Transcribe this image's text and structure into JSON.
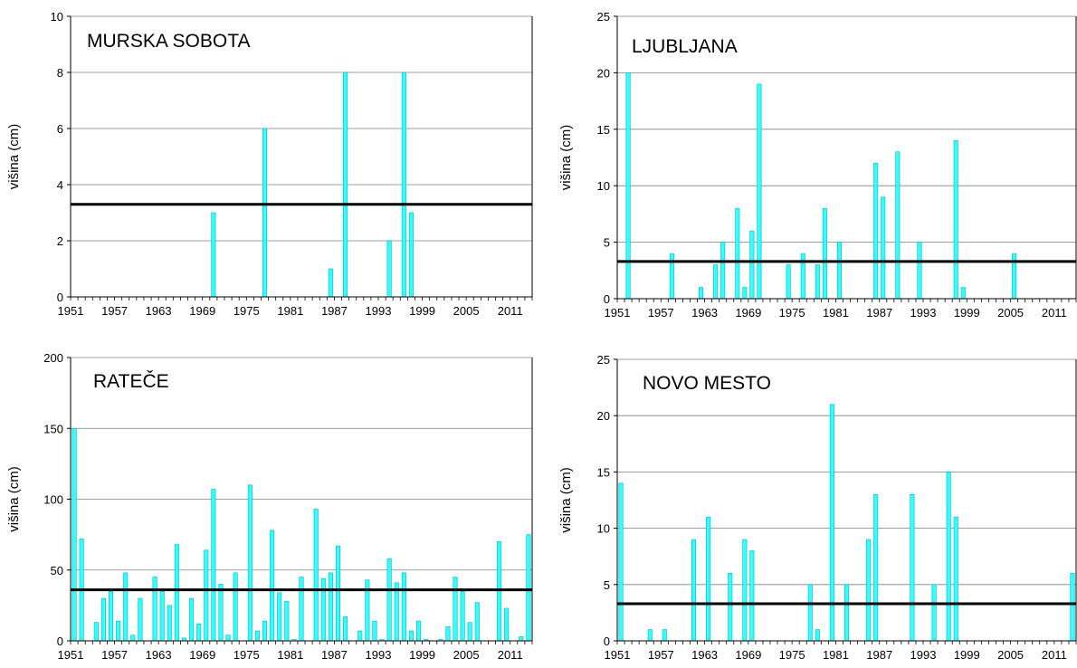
{
  "colors": {
    "bar": "#33FFFF",
    "bar_stroke": "#00B8C8",
    "mean_line": "#000000",
    "grid": "#808080"
  },
  "chart_data": [
    {
      "type": "bar",
      "title": "MURSKA SOBOTA",
      "ylabel": "višina (cm)",
      "ylim": [
        0,
        10
      ],
      "yticks": [
        "0",
        "2",
        "4",
        "6",
        "8",
        "10"
      ],
      "xticks": [
        "1951",
        "1957",
        "1963",
        "1969",
        "1975",
        "1981",
        "1987",
        "1993",
        "1999",
        "2005",
        "2011"
      ],
      "x_range": [
        1951,
        2012
      ],
      "mean": 3.3,
      "grid": true,
      "points": [
        {
          "x": 1970,
          "y": 3
        },
        {
          "x": 1977,
          "y": 6
        },
        {
          "x": 1986,
          "y": 1
        },
        {
          "x": 1988,
          "y": 8
        },
        {
          "x": 1994,
          "y": 2
        },
        {
          "x": 1996,
          "y": 8
        },
        {
          "x": 1997,
          "y": 3
        }
      ]
    },
    {
      "type": "bar",
      "title": "LJUBLJANA",
      "ylabel": "višina (cm)",
      "ylim": [
        0,
        25
      ],
      "yticks": [
        "0",
        "5",
        "10",
        "15",
        "20",
        "25"
      ],
      "xticks": [
        "1951",
        "1957",
        "1963",
        "1969",
        "1975",
        "1981",
        "1987",
        "1993",
        "1999",
        "2005",
        "2011"
      ],
      "x_range": [
        1951,
        2012
      ],
      "mean": 3.3,
      "grid": true,
      "points": [
        {
          "x": 1952,
          "y": 20
        },
        {
          "x": 1958,
          "y": 4
        },
        {
          "x": 1962,
          "y": 1
        },
        {
          "x": 1964,
          "y": 3
        },
        {
          "x": 1965,
          "y": 5
        },
        {
          "x": 1967,
          "y": 8
        },
        {
          "x": 1968,
          "y": 1
        },
        {
          "x": 1969,
          "y": 6
        },
        {
          "x": 1970,
          "y": 19
        },
        {
          "x": 1974,
          "y": 3
        },
        {
          "x": 1976,
          "y": 4
        },
        {
          "x": 1978,
          "y": 3
        },
        {
          "x": 1979,
          "y": 8
        },
        {
          "x": 1981,
          "y": 5
        },
        {
          "x": 1986,
          "y": 12
        },
        {
          "x": 1987,
          "y": 9
        },
        {
          "x": 1989,
          "y": 13
        },
        {
          "x": 1992,
          "y": 5
        },
        {
          "x": 1997,
          "y": 14
        },
        {
          "x": 1998,
          "y": 1
        },
        {
          "x": 2005,
          "y": 4
        }
      ]
    },
    {
      "type": "bar",
      "title": "RATEČE",
      "ylabel": "višina (cm)",
      "ylim": [
        0,
        200
      ],
      "yticks": [
        "0",
        "50",
        "100",
        "150",
        "200"
      ],
      "xticks": [
        "1951",
        "1957",
        "1963",
        "1969",
        "1975",
        "1981",
        "1987",
        "1993",
        "1999",
        "2005",
        "2011"
      ],
      "x_range": [
        1951,
        2012
      ],
      "mean": 36,
      "grid": true,
      "points": [
        {
          "x": 1951,
          "y": 150
        },
        {
          "x": 1952,
          "y": 72
        },
        {
          "x": 1954,
          "y": 13
        },
        {
          "x": 1955,
          "y": 30
        },
        {
          "x": 1956,
          "y": 35
        },
        {
          "x": 1957,
          "y": 14
        },
        {
          "x": 1958,
          "y": 48
        },
        {
          "x": 1959,
          "y": 4
        },
        {
          "x": 1960,
          "y": 30
        },
        {
          "x": 1962,
          "y": 45
        },
        {
          "x": 1963,
          "y": 35
        },
        {
          "x": 1964,
          "y": 25
        },
        {
          "x": 1965,
          "y": 68
        },
        {
          "x": 1966,
          "y": 2
        },
        {
          "x": 1967,
          "y": 30
        },
        {
          "x": 1968,
          "y": 12
        },
        {
          "x": 1969,
          "y": 64
        },
        {
          "x": 1970,
          "y": 107
        },
        {
          "x": 1971,
          "y": 40
        },
        {
          "x": 1972,
          "y": 4
        },
        {
          "x": 1973,
          "y": 48
        },
        {
          "x": 1975,
          "y": 110
        },
        {
          "x": 1976,
          "y": 7
        },
        {
          "x": 1977,
          "y": 14
        },
        {
          "x": 1978,
          "y": 78
        },
        {
          "x": 1979,
          "y": 34
        },
        {
          "x": 1980,
          "y": 28
        },
        {
          "x": 1981,
          "y": 1
        },
        {
          "x": 1982,
          "y": 45
        },
        {
          "x": 1984,
          "y": 93
        },
        {
          "x": 1985,
          "y": 44
        },
        {
          "x": 1986,
          "y": 48
        },
        {
          "x": 1987,
          "y": 67
        },
        {
          "x": 1988,
          "y": 17
        },
        {
          "x": 1990,
          "y": 7
        },
        {
          "x": 1991,
          "y": 43
        },
        {
          "x": 1992,
          "y": 14
        },
        {
          "x": 1993,
          "y": 1
        },
        {
          "x": 1994,
          "y": 58
        },
        {
          "x": 1995,
          "y": 41
        },
        {
          "x": 1996,
          "y": 48
        },
        {
          "x": 1997,
          "y": 7
        },
        {
          "x": 1998,
          "y": 14
        },
        {
          "x": 1999,
          "y": 1
        },
        {
          "x": 2001,
          "y": 1
        },
        {
          "x": 2002,
          "y": 10
        },
        {
          "x": 2003,
          "y": 45
        },
        {
          "x": 2004,
          "y": 35
        },
        {
          "x": 2005,
          "y": 13
        },
        {
          "x": 2006,
          "y": 27
        },
        {
          "x": 2009,
          "y": 70
        },
        {
          "x": 2010,
          "y": 23
        },
        {
          "x": 2012,
          "y": 3
        },
        {
          "x": 2013,
          "y": 75
        }
      ]
    },
    {
      "type": "bar",
      "title": "NOVO MESTO",
      "ylabel": "višina (cm)",
      "ylim": [
        0,
        25
      ],
      "yticks": [
        "0",
        "5",
        "10",
        "15",
        "20",
        "25"
      ],
      "xticks": [
        "1951",
        "1957",
        "1963",
        "1969",
        "1975",
        "1981",
        "1987",
        "1993",
        "1999",
        "2005",
        "2011"
      ],
      "x_range": [
        1951,
        2012
      ],
      "mean": 3.3,
      "grid": true,
      "points": [
        {
          "x": 1951,
          "y": 14
        },
        {
          "x": 1955,
          "y": 1
        },
        {
          "x": 1957,
          "y": 1
        },
        {
          "x": 1961,
          "y": 9
        },
        {
          "x": 1963,
          "y": 11
        },
        {
          "x": 1966,
          "y": 6
        },
        {
          "x": 1968,
          "y": 9
        },
        {
          "x": 1969,
          "y": 8
        },
        {
          "x": 1977,
          "y": 5
        },
        {
          "x": 1978,
          "y": 1
        },
        {
          "x": 1980,
          "y": 21
        },
        {
          "x": 1982,
          "y": 5
        },
        {
          "x": 1985,
          "y": 9
        },
        {
          "x": 1986,
          "y": 13
        },
        {
          "x": 1991,
          "y": 13
        },
        {
          "x": 1994,
          "y": 5
        },
        {
          "x": 1996,
          "y": 15
        },
        {
          "x": 1997,
          "y": 11
        },
        {
          "x": 2013,
          "y": 6
        }
      ]
    }
  ]
}
